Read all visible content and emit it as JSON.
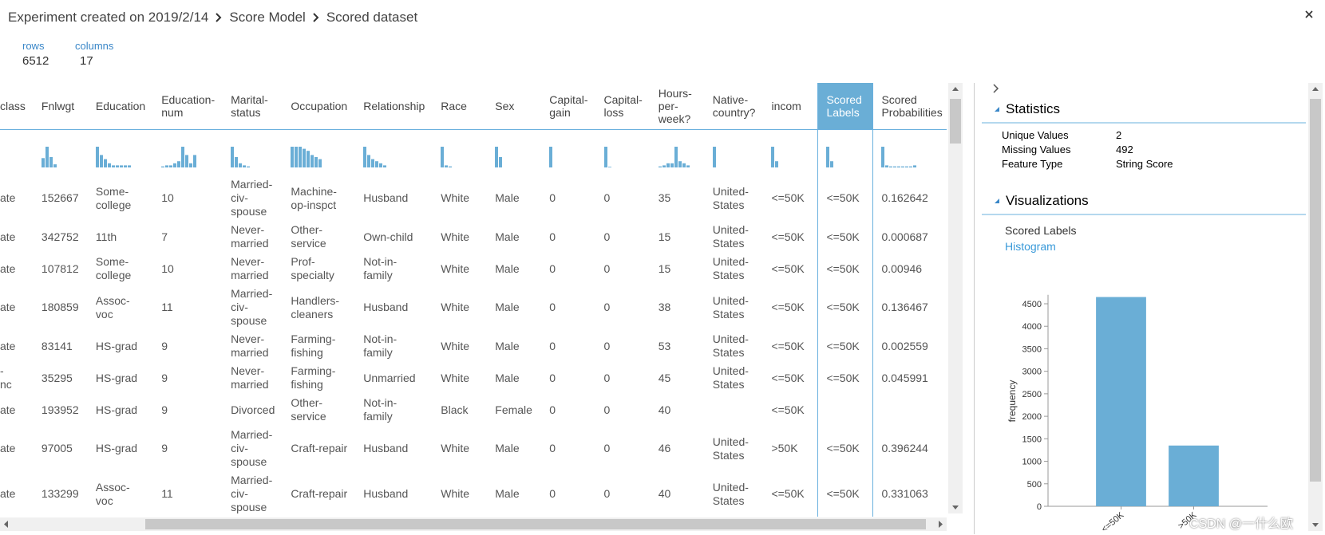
{
  "header": {
    "breadcrumb": [
      "Experiment created on 2019/2/14",
      "Score Model",
      "Scored dataset"
    ]
  },
  "summary": {
    "rows_label": "rows",
    "rows": 6512,
    "columns_label": "columns",
    "columns": 17
  },
  "table": {
    "columns": [
      "class",
      "Fnlwgt",
      "Education",
      "Education-num",
      "Marital-status",
      "Occupation",
      "Relationship",
      "Race",
      "Sex",
      "Capital-gain",
      "Capital-loss",
      "Hours-per-week?",
      "Native-country?",
      "incom",
      "Scored Labels",
      "Scored Probabilities"
    ],
    "sparklines": [
      null,
      [
        0.45,
        1,
        0.5,
        0.15
      ],
      [
        1,
        0.6,
        0.4,
        0.2,
        0.1,
        0.1,
        0.1,
        0.1,
        0.1
      ],
      [
        0.05,
        0.1,
        0.1,
        0.2,
        0.3,
        1,
        0.6,
        0.2,
        0.6
      ],
      [
        1,
        0.5,
        0.2,
        0.1,
        0.05
      ],
      [
        1,
        1,
        1,
        0.9,
        0.8,
        0.6,
        0.5,
        0.4
      ],
      [
        1,
        0.6,
        0.4,
        0.3,
        0.2,
        0.1
      ],
      [
        1,
        0.1,
        0.05
      ],
      [
        1,
        0.5
      ],
      [
        1
      ],
      [
        1,
        0.03
      ],
      [
        0.05,
        0.1,
        0.2,
        0.2,
        1,
        0.3,
        0.2,
        0.1
      ],
      [
        1
      ],
      [
        1,
        0.3
      ],
      [
        1,
        0.3
      ],
      [
        1,
        0.1,
        0.05,
        0.05,
        0.05,
        0.05,
        0.05,
        0.05,
        0.1
      ]
    ],
    "rows": [
      [
        "ate",
        152667,
        "Some-college",
        10,
        "Married-civ-spouse",
        "Machine-op-inspct",
        "Husband",
        "White",
        "Male",
        0,
        0,
        35,
        "United-States",
        "<=50K",
        "<=50K",
        0.162642
      ],
      [
        "ate",
        342752,
        "11th",
        7,
        "Never-married",
        "Other-service",
        "Own-child",
        "White",
        "Male",
        0,
        0,
        15,
        "United-States",
        "<=50K",
        "<=50K",
        0.000687
      ],
      [
        "ate",
        107812,
        "Some-college",
        10,
        "Never-married",
        "Prof-specialty",
        "Not-in-family",
        "White",
        "Male",
        0,
        0,
        15,
        "United-States",
        "<=50K",
        "<=50K",
        0.00946
      ],
      [
        "ate",
        180859,
        "Assoc-voc",
        11,
        "Married-civ-spouse",
        "Handlers-cleaners",
        "Husband",
        "White",
        "Male",
        0,
        0,
        38,
        "United-States",
        "<=50K",
        "<=50K",
        0.136467
      ],
      [
        "ate",
        83141,
        "HS-grad",
        9,
        "Never-married",
        "Farming-fishing",
        "Not-in-family",
        "White",
        "Male",
        0,
        0,
        53,
        "United-States",
        "<=50K",
        "<=50K",
        0.002559
      ],
      [
        "-\nnc",
        35295,
        "HS-grad",
        9,
        "Never-married",
        "Farming-fishing",
        "Unmarried",
        "White",
        "Male",
        0,
        0,
        45,
        "United-States",
        "<=50K",
        "<=50K",
        0.045991
      ],
      [
        "ate",
        193952,
        "HS-grad",
        9,
        "Divorced",
        "Other-service",
        "Not-in-family",
        "Black",
        "Female",
        0,
        0,
        40,
        null,
        "<=50K",
        null,
        null
      ],
      [
        "ate",
        97005,
        "HS-grad",
        9,
        "Married-civ-spouse",
        "Craft-repair",
        "Husband",
        "White",
        "Male",
        0,
        0,
        46,
        "United-States",
        ">50K",
        "<=50K",
        0.396244
      ],
      [
        "ate",
        133299,
        "Assoc-voc",
        11,
        "Married-civ-spouse",
        "Craft-repair",
        "Husband",
        "White",
        "Male",
        0,
        0,
        40,
        "United-States",
        "<=50K",
        "<=50K",
        0.331063
      ]
    ]
  },
  "panel": {
    "statistics_title": "Statistics",
    "statistics": [
      [
        "Unique Values",
        2
      ],
      [
        "Missing Values",
        492
      ],
      [
        "Feature Type",
        "String Score"
      ]
    ],
    "visualizations_title": "Visualizations",
    "feature": "Scored Labels",
    "link": "Histogram"
  },
  "chart_data": {
    "type": "bar",
    "categories": [
      "<=50K",
      ">50K"
    ],
    "values": [
      4650,
      1350
    ],
    "color": "#6aaed6",
    "ylim": [
      0,
      4700
    ],
    "yticks": [
      0,
      500,
      1000,
      1500,
      2000,
      2500,
      3000,
      3500,
      4000,
      4500
    ],
    "ylabel": "frequency"
  },
  "watermark": "CSDN @一什么欧"
}
